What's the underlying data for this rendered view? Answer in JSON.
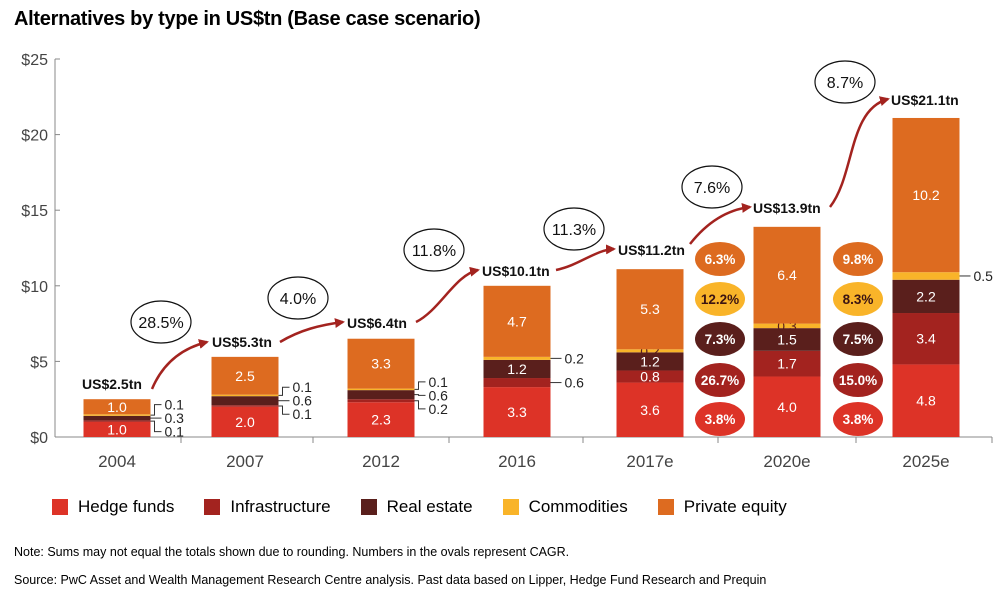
{
  "colors": {
    "hedge": "#dd3327",
    "infra": "#a3231f",
    "realestate": "#5a1f1c",
    "commod": "#f9b429",
    "pe": "#dd6b20",
    "arrow": "#a3231f",
    "axis": "#888888"
  },
  "legend": [
    {
      "key": "hedge",
      "label": "Hedge funds"
    },
    {
      "key": "infra",
      "label": "Infrastructure"
    },
    {
      "key": "realestate",
      "label": "Real estate"
    },
    {
      "key": "commod",
      "label": "Commodities"
    },
    {
      "key": "pe",
      "label": "Private equity"
    }
  ],
  "notes": {
    "note": "Note: Sums may not equal the totals shown due to rounding. Numbers in the ovals represent CAGR.",
    "source": "Source: PwC Asset and Wealth Management Research Centre analysis. Past data based on Lipper, Hedge Fund Research and Prequin"
  },
  "chart_data": {
    "type": "bar",
    "stacked": true,
    "title": "Alternatives by type in US$tn (Base case scenario)",
    "xlabel": "",
    "ylabel": "",
    "ylim": [
      0,
      25
    ],
    "yticks": [
      "$0",
      "$5",
      "$10",
      "$15",
      "$20",
      "$25"
    ],
    "categories": [
      "2004",
      "2007",
      "2012",
      "2016",
      "2017e",
      "2020e",
      "2025e"
    ],
    "series": [
      {
        "key": "hedge",
        "name": "Hedge funds",
        "values": [
          1.0,
          2.0,
          2.3,
          3.3,
          3.6,
          4.0,
          4.8
        ]
      },
      {
        "key": "infra",
        "name": "Infrastructure",
        "values": [
          0.1,
          0.1,
          0.2,
          0.6,
          0.8,
          1.7,
          3.4
        ]
      },
      {
        "key": "realestate",
        "name": "Real estate",
        "values": [
          0.3,
          0.6,
          0.6,
          1.2,
          1.2,
          1.5,
          2.2
        ]
      },
      {
        "key": "commod",
        "name": "Commodities",
        "values": [
          0.1,
          0.1,
          0.1,
          0.2,
          0.2,
          0.3,
          0.5
        ]
      },
      {
        "key": "pe",
        "name": "Private equity",
        "values": [
          1.0,
          2.5,
          3.3,
          4.7,
          5.3,
          6.4,
          10.2
        ]
      }
    ],
    "inside_labels": [
      [
        "1.0",
        "",
        "",
        "",
        "1.0"
      ],
      [
        "2.0",
        "",
        "",
        "",
        "2.5"
      ],
      [
        "2.3",
        "",
        "",
        "",
        "3.3"
      ],
      [
        "3.3",
        "",
        "1.2",
        "",
        "4.7"
      ],
      [
        "3.6",
        "0.8",
        "1.2",
        "0.2",
        "5.3"
      ],
      [
        "4.0",
        "1.7",
        "1.5",
        "0.3",
        "6.4"
      ],
      [
        "4.8",
        "3.4",
        "2.2",
        "",
        "10.2"
      ]
    ],
    "side_labels": [
      {
        "bar": 0,
        "items": [
          {
            "series": 3,
            "text": "0.1"
          },
          {
            "series": 2,
            "text": "0.3"
          },
          {
            "series": 1,
            "text": "0.1"
          }
        ]
      },
      {
        "bar": 1,
        "items": [
          {
            "series": 3,
            "text": "0.1"
          },
          {
            "series": 2,
            "text": "0.6"
          },
          {
            "series": 1,
            "text": "0.1"
          }
        ]
      },
      {
        "bar": 2,
        "items": [
          {
            "series": 3,
            "text": "0.1"
          },
          {
            "series": 2,
            "text": "0.6"
          },
          {
            "series": 1,
            "text": "0.2"
          }
        ]
      },
      {
        "bar": 3,
        "items": [
          {
            "series": 3,
            "text": "0.2"
          },
          {
            "series": 1,
            "text": "0.6"
          }
        ]
      },
      {
        "bar": 6,
        "items": [
          {
            "series": 3,
            "text": "0.5"
          }
        ]
      }
    ],
    "totals": [
      {
        "text": "US$2.5tn",
        "value": 2.5
      },
      {
        "text": "US$5.3tn",
        "value": 5.3
      },
      {
        "text": "US$6.4tn",
        "value": 6.4
      },
      {
        "text": "US$10.1tn",
        "value": 10.1
      },
      {
        "text": "US$11.2tn",
        "value": 11.2
      },
      {
        "text": "US$13.9tn",
        "value": 13.9
      },
      {
        "text": "US$21.1tn",
        "value": 21.1
      }
    ],
    "total_cagr": [
      "28.5%",
      "4.0%",
      "11.8%",
      "11.3%",
      "7.6%",
      "8.7%"
    ],
    "segment_cagr": [
      {
        "between": [
          4,
          5
        ],
        "values": [
          "6.3%",
          "12.2%",
          "7.3%",
          "26.7%",
          "3.8%"
        ]
      },
      {
        "between": [
          5,
          6
        ],
        "values": [
          "9.8%",
          "8.3%",
          "7.5%",
          "15.0%",
          "3.8%"
        ]
      }
    ],
    "segment_cagr_series": [
      "pe",
      "commod",
      "realestate",
      "infra",
      "hedge"
    ]
  }
}
